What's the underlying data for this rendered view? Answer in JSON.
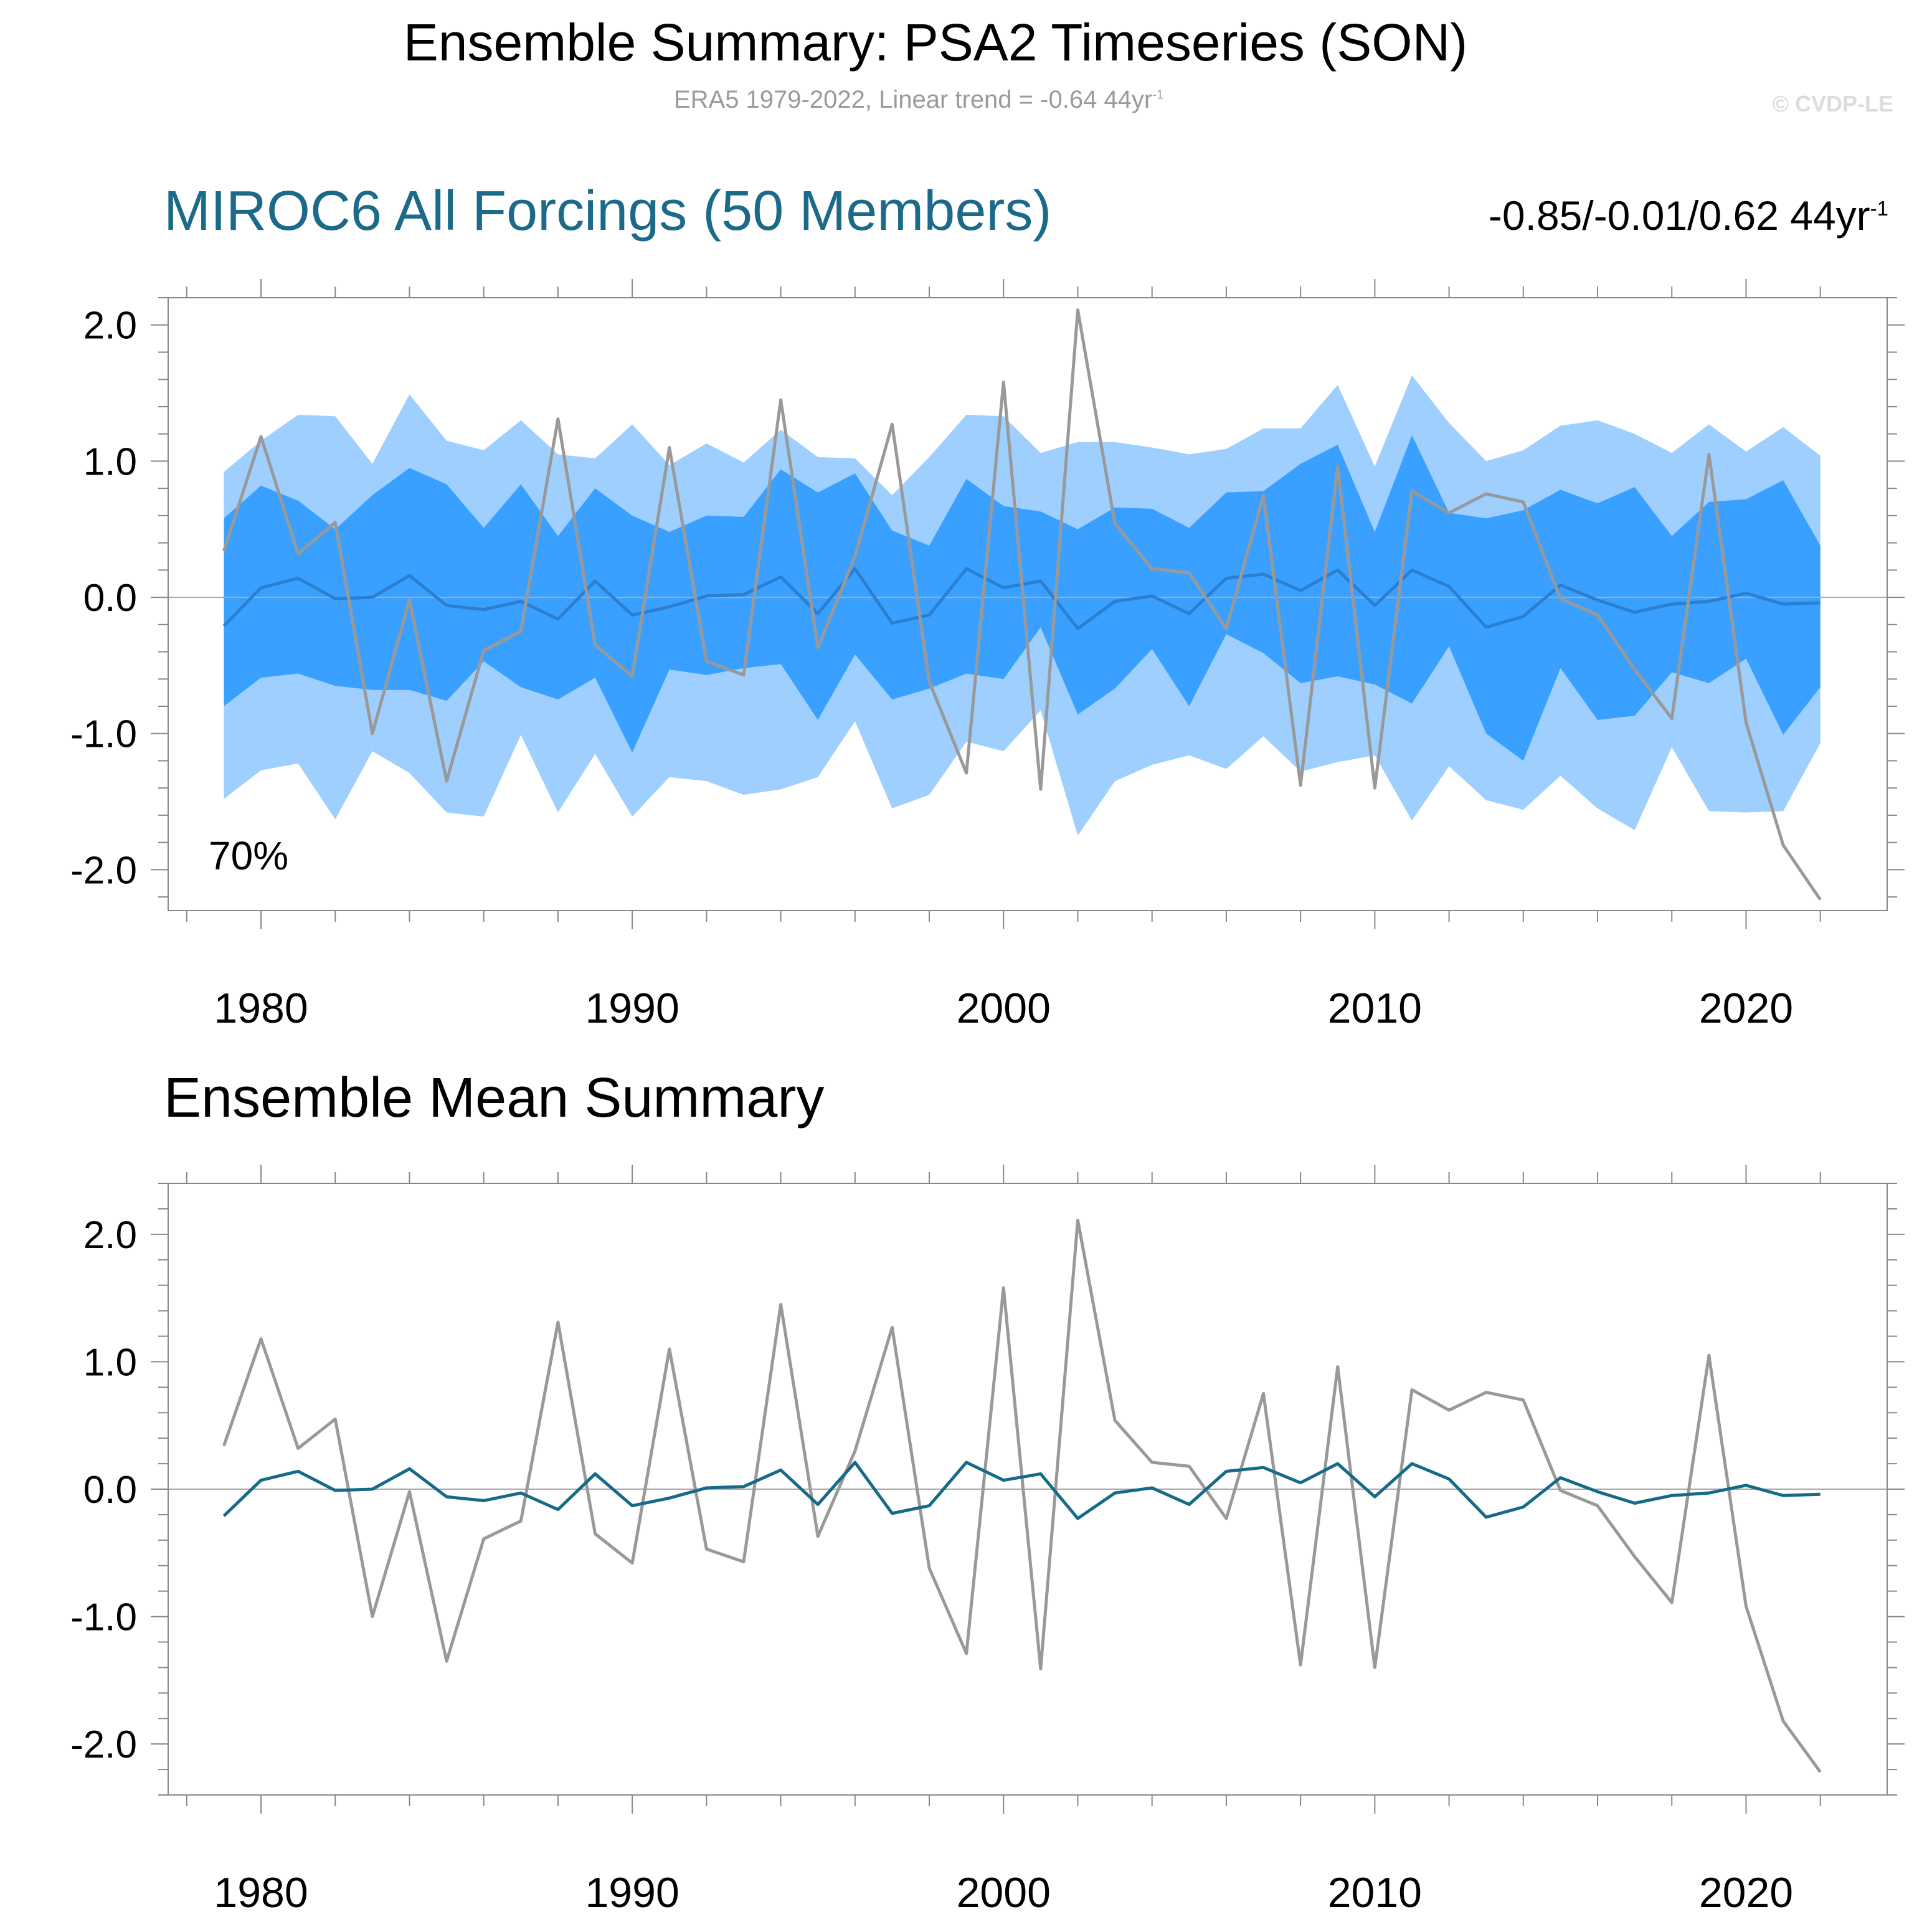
{
  "header": {
    "title": "Ensemble Summary: PSA2 Timeseries (SON)",
    "subtitle": "ERA5 1979-2022, Linear trend = -0.64 44yr",
    "subtitle_sup": "-1",
    "credit": "© CVDP-LE"
  },
  "panel1": {
    "title": "MIROC6 All Forcings (50 Members)",
    "trend_range": "-0.85/-0.01/0.62 44yr",
    "trend_range_sup": "-1",
    "percent_label": "70%"
  },
  "panel2": {
    "title": "Ensemble Mean Summary"
  },
  "colors": {
    "outer_band": "#9ecfff",
    "inner_band": "#3aa0ff",
    "band_mean_line": "#2a7fd0",
    "ensemble_mean_line": "#156a88",
    "observations_line": "#999999",
    "axis": "#888888"
  },
  "chart_data": [
    {
      "type": "area",
      "panel": "top",
      "ylim": [
        -2.3,
        2.2
      ],
      "xlim": [
        1977.5,
        2023.8
      ],
      "yticks": [
        -2.0,
        -1.0,
        0.0,
        1.0,
        2.0
      ],
      "ytick_labels": [
        "-2.0",
        "-1.0",
        "0.0",
        "1.0",
        "2.0"
      ],
      "xticks": [
        1980,
        1990,
        2000,
        2010,
        2020
      ],
      "xtick_labels": [
        "1980",
        "1990",
        "2000",
        "2010",
        "2020"
      ],
      "x": [
        1979,
        1980,
        1981,
        1982,
        1983,
        1984,
        1985,
        1986,
        1987,
        1988,
        1989,
        1990,
        1991,
        1992,
        1993,
        1994,
        1995,
        1996,
        1997,
        1998,
        1999,
        2000,
        2001,
        2002,
        2003,
        2004,
        2005,
        2006,
        2007,
        2008,
        2009,
        2010,
        2011,
        2012,
        2013,
        2014,
        2015,
        2016,
        2017,
        2018,
        2019,
        2020,
        2021,
        2022
      ],
      "outer_upper": [
        0.92,
        1.15,
        1.34,
        1.33,
        0.98,
        1.49,
        1.15,
        1.08,
        1.3,
        1.05,
        1.02,
        1.27,
        0.97,
        1.13,
        0.99,
        1.23,
        1.03,
        1.02,
        0.75,
        1.03,
        1.34,
        1.33,
        1.06,
        1.14,
        1.14,
        1.1,
        1.05,
        1.09,
        1.24,
        1.24,
        1.56,
        0.96,
        1.63,
        1.28,
        1.0,
        1.08,
        1.26,
        1.3,
        1.2,
        1.06,
        1.27,
        1.07,
        1.25,
        1.04
      ],
      "inner_upper": [
        0.58,
        0.82,
        0.71,
        0.5,
        0.75,
        0.95,
        0.83,
        0.51,
        0.83,
        0.45,
        0.8,
        0.6,
        0.48,
        0.6,
        0.59,
        0.94,
        0.77,
        0.91,
        0.49,
        0.38,
        0.87,
        0.67,
        0.63,
        0.5,
        0.66,
        0.65,
        0.51,
        0.77,
        0.78,
        0.98,
        1.12,
        0.48,
        1.19,
        0.62,
        0.58,
        0.64,
        0.79,
        0.69,
        0.81,
        0.45,
        0.7,
        0.72,
        0.86,
        0.38
      ],
      "inner_lower": [
        -0.8,
        -0.59,
        -0.56,
        -0.65,
        -0.68,
        -0.68,
        -0.76,
        -0.47,
        -0.66,
        -0.75,
        -0.59,
        -1.14,
        -0.53,
        -0.57,
        -0.52,
        -0.49,
        -0.9,
        -0.42,
        -0.75,
        -0.67,
        -0.56,
        -0.6,
        -0.22,
        -0.86,
        -0.67,
        -0.38,
        -0.8,
        -0.27,
        -0.41,
        -0.63,
        -0.58,
        -0.64,
        -0.78,
        -0.36,
        -1.0,
        -1.2,
        -0.52,
        -0.9,
        -0.87,
        -0.55,
        -0.63,
        -0.45,
        -1.01,
        -0.66
      ],
      "outer_lower": [
        -1.48,
        -1.27,
        -1.22,
        -1.63,
        -1.13,
        -1.29,
        -1.58,
        -1.61,
        -1.01,
        -1.58,
        -1.15,
        -1.61,
        -1.32,
        -1.35,
        -1.45,
        -1.41,
        -1.32,
        -0.91,
        -1.55,
        -1.45,
        -1.06,
        -1.13,
        -0.83,
        -1.75,
        -1.35,
        -1.23,
        -1.16,
        -1.26,
        -1.02,
        -1.28,
        -1.21,
        -1.16,
        -1.64,
        -1.24,
        -1.49,
        -1.56,
        -1.31,
        -1.55,
        -1.71,
        -1.1,
        -1.57,
        -1.58,
        -1.57,
        -1.07
      ],
      "series": [
        {
          "name": "",
          "role": "ensemble_mean",
          "values": [
            -0.21,
            0.07,
            0.14,
            -0.01,
            0.0,
            0.16,
            -0.06,
            -0.09,
            -0.03,
            -0.16,
            0.12,
            -0.13,
            -0.07,
            0.01,
            0.02,
            0.15,
            -0.12,
            0.21,
            -0.19,
            -0.13,
            0.21,
            0.07,
            0.12,
            -0.23,
            -0.03,
            0.01,
            -0.12,
            0.14,
            0.17,
            0.05,
            0.2,
            -0.06,
            0.2,
            0.08,
            -0.22,
            -0.14,
            0.09,
            -0.02,
            -0.11,
            -0.05,
            -0.03,
            0.03,
            -0.05,
            -0.04
          ]
        },
        {
          "name": "",
          "role": "observations",
          "values": [
            0.34,
            1.18,
            0.32,
            0.55,
            -1.0,
            -0.02,
            -1.35,
            -0.39,
            -0.25,
            1.31,
            -0.35,
            -0.58,
            1.1,
            -0.47,
            -0.57,
            1.45,
            -0.37,
            0.3,
            1.27,
            -0.62,
            -1.29,
            1.58,
            -1.41,
            2.11,
            0.54,
            0.21,
            0.18,
            -0.23,
            0.75,
            -1.38,
            0.96,
            -1.4,
            0.78,
            0.62,
            0.76,
            0.7,
            -0.01,
            -0.13,
            -0.53,
            -0.89,
            1.05,
            -0.92,
            -1.82,
            -2.22
          ]
        }
      ]
    },
    {
      "type": "line",
      "panel": "bottom",
      "ylim": [
        -2.4,
        2.4
      ],
      "xlim": [
        1977.5,
        2023.8
      ],
      "yticks": [
        -2.0,
        -1.0,
        0.0,
        1.0,
        2.0
      ],
      "ytick_labels": [
        "-2.0",
        "-1.0",
        "0.0",
        "1.0",
        "2.0"
      ],
      "xticks": [
        1980,
        1990,
        2000,
        2010,
        2020
      ],
      "xtick_labels": [
        "1980",
        "1990",
        "2000",
        "2010",
        "2020"
      ],
      "x": [
        1979,
        1980,
        1981,
        1982,
        1983,
        1984,
        1985,
        1986,
        1987,
        1988,
        1989,
        1990,
        1991,
        1992,
        1993,
        1994,
        1995,
        1996,
        1997,
        1998,
        1999,
        2000,
        2001,
        2002,
        2003,
        2004,
        2005,
        2006,
        2007,
        2008,
        2009,
        2010,
        2011,
        2012,
        2013,
        2014,
        2015,
        2016,
        2017,
        2018,
        2019,
        2020,
        2021,
        2022
      ],
      "series": [
        {
          "name": "",
          "role": "observations",
          "values": [
            0.34,
            1.18,
            0.32,
            0.55,
            -1.0,
            -0.02,
            -1.35,
            -0.39,
            -0.25,
            1.31,
            -0.35,
            -0.58,
            1.1,
            -0.47,
            -0.57,
            1.45,
            -0.37,
            0.3,
            1.27,
            -0.62,
            -1.29,
            1.58,
            -1.41,
            2.11,
            0.54,
            0.21,
            0.18,
            -0.23,
            0.75,
            -1.38,
            0.96,
            -1.4,
            0.78,
            0.62,
            0.76,
            0.7,
            -0.01,
            -0.13,
            -0.53,
            -0.89,
            1.05,
            -0.92,
            -1.82,
            -2.22
          ]
        },
        {
          "name": "",
          "role": "ensemble_mean",
          "values": [
            -0.21,
            0.07,
            0.14,
            -0.01,
            0.0,
            0.16,
            -0.06,
            -0.09,
            -0.03,
            -0.16,
            0.12,
            -0.13,
            -0.07,
            0.01,
            0.02,
            0.15,
            -0.12,
            0.21,
            -0.19,
            -0.13,
            0.21,
            0.07,
            0.12,
            -0.23,
            -0.03,
            0.01,
            -0.12,
            0.14,
            0.17,
            0.05,
            0.2,
            -0.06,
            0.2,
            0.08,
            -0.22,
            -0.14,
            0.09,
            -0.02,
            -0.11,
            -0.05,
            -0.03,
            0.03,
            -0.05,
            -0.04
          ]
        }
      ]
    }
  ]
}
